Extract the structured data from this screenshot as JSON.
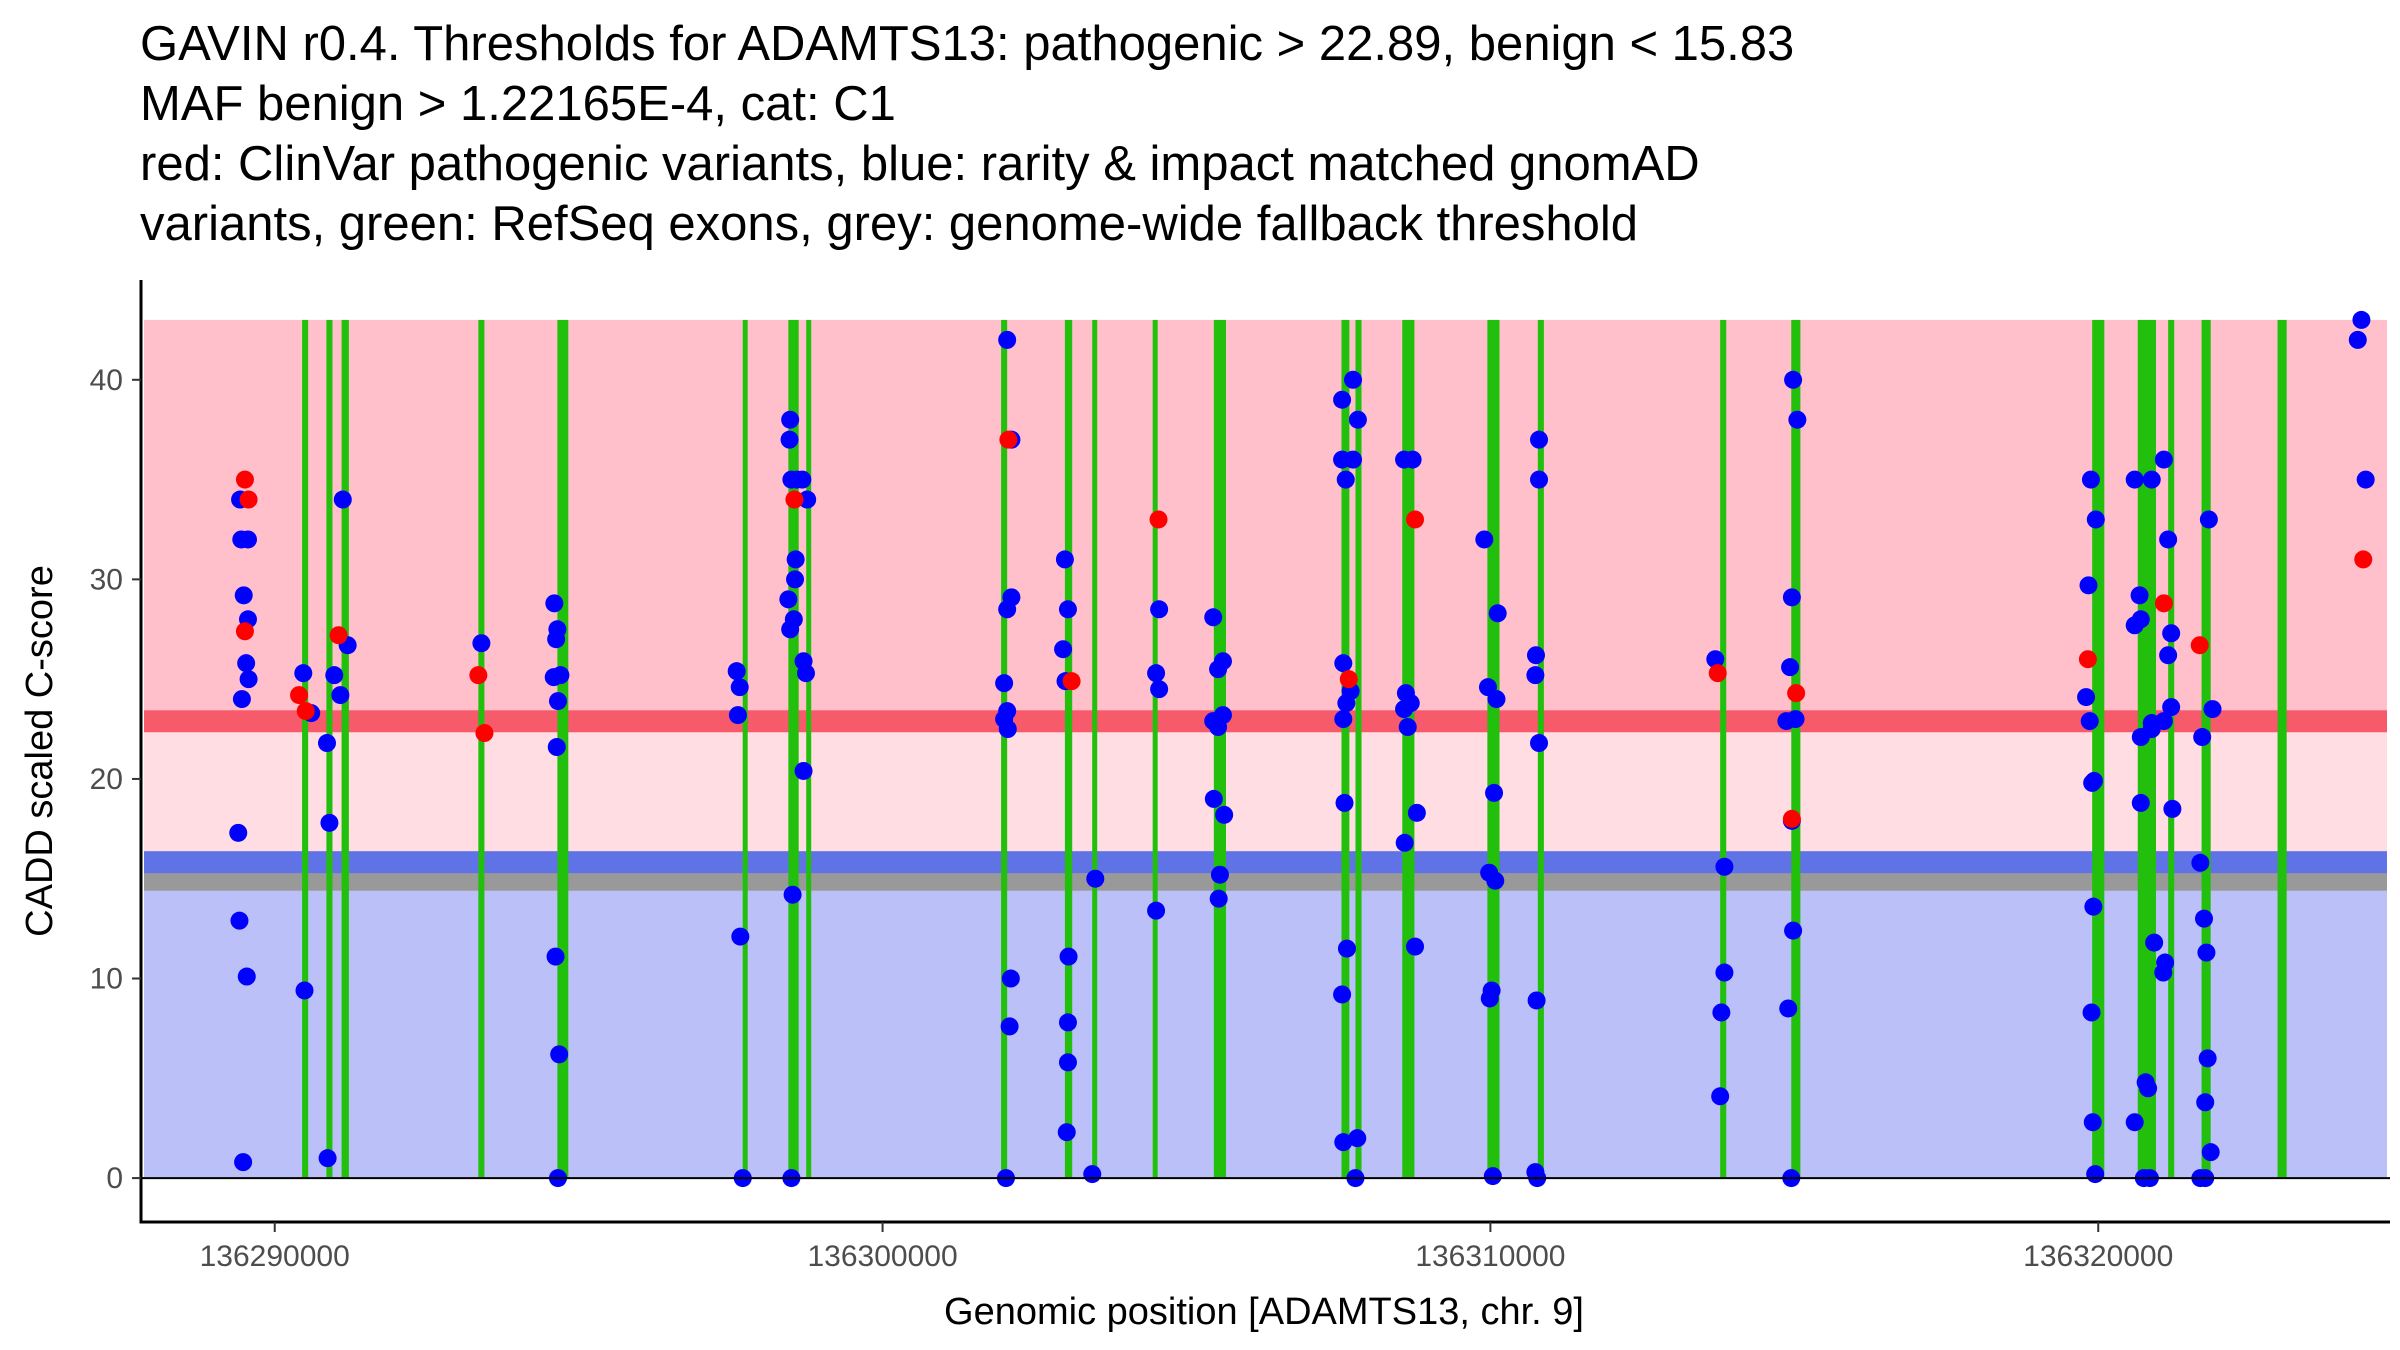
{
  "chart_data": {
    "type": "scatter",
    "title_lines": [
      "GAVIN r0.4. Thresholds for ADAMTS13: pathogenic > 22.89, benign < 15.83",
      "MAF benign > 1.22165E-4, cat: C1",
      "red: ClinVar pathogenic variants, blue: rarity & impact matched gnomAD",
      "variants, green: RefSeq exons, grey: genome-wide fallback threshold"
    ],
    "xlabel": "Genomic position [ADAMTS13, chr. 9]",
    "ylabel": "CADD scaled C-score",
    "xlim": [
      136287800,
      136324800
    ],
    "ylim": [
      -2.2,
      45
    ],
    "x_ticks": [
      136290000,
      136300000,
      136310000,
      136320000
    ],
    "x_tick_labels": [
      "136290000",
      "136300000",
      "136310000",
      "136320000"
    ],
    "y_ticks": [
      0,
      10,
      20,
      30,
      40
    ],
    "y_tick_labels": [
      "0",
      "10",
      "20",
      "30",
      "40"
    ],
    "colors": {
      "pathogenic_band": "#ffc0cb",
      "grey_zone_band": "#ffdde2",
      "benign_band": "#bbc1f8",
      "pathogenic_line": "#f75b6b",
      "benign_line": "#5f73e6",
      "fallback_line": "#999999",
      "exon": "#22c00c",
      "clinvar": "#ff0000",
      "gnomad": "#0000ff"
    },
    "thresholds": {
      "pathogenic": 22.89,
      "benign": 15.83,
      "fallback": 15.0,
      "cadd_max": 43,
      "cadd_min": 0
    },
    "exons": [
      {
        "start": 136290450,
        "end": 136290550
      },
      {
        "start": 136290850,
        "end": 136290950
      },
      {
        "start": 136291100,
        "end": 136291220
      },
      {
        "start": 136293350,
        "end": 136293450
      },
      {
        "start": 136294650,
        "end": 136294830
      },
      {
        "start": 136297700,
        "end": 136297780
      },
      {
        "start": 136298450,
        "end": 136298620
      },
      {
        "start": 136298750,
        "end": 136298820
      },
      {
        "start": 136301950,
        "end": 136302050
      },
      {
        "start": 136303000,
        "end": 136303120
      },
      {
        "start": 136303450,
        "end": 136303530
      },
      {
        "start": 136304450,
        "end": 136304520
      },
      {
        "start": 136305450,
        "end": 136305650
      },
      {
        "start": 136307550,
        "end": 136307680
      },
      {
        "start": 136307780,
        "end": 136307880
      },
      {
        "start": 136308550,
        "end": 136308750
      },
      {
        "start": 136309950,
        "end": 136310150
      },
      {
        "start": 136310780,
        "end": 136310880
      },
      {
        "start": 136313780,
        "end": 136313880
      },
      {
        "start": 136314950,
        "end": 136315100
      },
      {
        "start": 136319900,
        "end": 136320100
      },
      {
        "start": 136320650,
        "end": 136320950
      },
      {
        "start": 136321150,
        "end": 136321250
      },
      {
        "start": 136321700,
        "end": 136321850
      },
      {
        "start": 136322950,
        "end": 136323100
      }
    ],
    "series": [
      {
        "name": "gnomAD",
        "color": "#0000ff",
        "points": [
          [
            136289430,
            34
          ],
          [
            136289450,
            32
          ],
          [
            136289560,
            32
          ],
          [
            136289490,
            29.2
          ],
          [
            136289560,
            28
          ],
          [
            136289530,
            25.8
          ],
          [
            136289570,
            25
          ],
          [
            136289460,
            24
          ],
          [
            136289400,
            17.3
          ],
          [
            136289420,
            12.9
          ],
          [
            136289540,
            10.1
          ],
          [
            136289480,
            0.8
          ],
          [
            136290470,
            25.3
          ],
          [
            136290490,
            9.4
          ],
          [
            136290600,
            23.3
          ],
          [
            136290860,
            21.8
          ],
          [
            136290900,
            17.8
          ],
          [
            136290870,
            1
          ],
          [
            136290980,
            25.2
          ],
          [
            136291120,
            34
          ],
          [
            136291080,
            24.2
          ],
          [
            136291200,
            26.7
          ],
          [
            136293400,
            26.8
          ],
          [
            136294600,
            28.8
          ],
          [
            136294650,
            27.5
          ],
          [
            136294630,
            27
          ],
          [
            136294590,
            25.1
          ],
          [
            136294700,
            25.2
          ],
          [
            136294660,
            23.9
          ],
          [
            136294640,
            21.6
          ],
          [
            136294620,
            11.1
          ],
          [
            136294680,
            6.2
          ],
          [
            136294660,
            0
          ],
          [
            136297600,
            25.4
          ],
          [
            136297650,
            24.6
          ],
          [
            136297620,
            23.2
          ],
          [
            136297660,
            12.1
          ],
          [
            136297700,
            0
          ],
          [
            136298480,
            38
          ],
          [
            136298470,
            37
          ],
          [
            136298500,
            35
          ],
          [
            136298680,
            35
          ],
          [
            136298570,
            31
          ],
          [
            136298450,
            29
          ],
          [
            136298560,
            30
          ],
          [
            136298540,
            28
          ],
          [
            136298480,
            27.5
          ],
          [
            136298700,
            25.9
          ],
          [
            136298740,
            25.3
          ],
          [
            136298700,
            20.4
          ],
          [
            136298520,
            14.2
          ],
          [
            136298500,
            0
          ],
          [
            136298760,
            34
          ],
          [
            136298590,
            35
          ],
          [
            136302050,
            42
          ],
          [
            136302120,
            37
          ],
          [
            136302120,
            29.1
          ],
          [
            136302050,
            28.5
          ],
          [
            136302000,
            24.8
          ],
          [
            136302050,
            23.4
          ],
          [
            136302000,
            23
          ],
          [
            136302060,
            22.5
          ],
          [
            136302110,
            10
          ],
          [
            136302090,
            7.6
          ],
          [
            136302030,
            0
          ],
          [
            136303000,
            31
          ],
          [
            136303050,
            28.5
          ],
          [
            136302970,
            26.5
          ],
          [
            136303010,
            24.9
          ],
          [
            136303060,
            11.1
          ],
          [
            136303050,
            7.8
          ],
          [
            136303050,
            5.8
          ],
          [
            136303030,
            2.3
          ],
          [
            136303500,
            15
          ],
          [
            136303450,
            0.2
          ],
          [
            136304550,
            28.5
          ],
          [
            136304500,
            25.3
          ],
          [
            136304550,
            24.5
          ],
          [
            136304500,
            13.4
          ],
          [
            136305440,
            28.1
          ],
          [
            136305520,
            25.5
          ],
          [
            136305600,
            25.9
          ],
          [
            136305600,
            23.2
          ],
          [
            136305440,
            22.9
          ],
          [
            136305520,
            22.6
          ],
          [
            136305450,
            19
          ],
          [
            136305620,
            18.2
          ],
          [
            136305550,
            15.2
          ],
          [
            136305530,
            14
          ],
          [
            136307560,
            39
          ],
          [
            136307740,
            40
          ],
          [
            136307560,
            36
          ],
          [
            136307740,
            36
          ],
          [
            136307820,
            38
          ],
          [
            136307620,
            35
          ],
          [
            136307580,
            25.8
          ],
          [
            136307700,
            24.4
          ],
          [
            136307630,
            23.8
          ],
          [
            136307580,
            23
          ],
          [
            136307600,
            18.8
          ],
          [
            136307640,
            11.5
          ],
          [
            136307560,
            9.2
          ],
          [
            136307580,
            1.8
          ],
          [
            136307810,
            2
          ],
          [
            136307780,
            0
          ],
          [
            136308580,
            36
          ],
          [
            136308720,
            36
          ],
          [
            136308610,
            24.3
          ],
          [
            136308690,
            23.8
          ],
          [
            136308580,
            23.5
          ],
          [
            136308640,
            22.6
          ],
          [
            136308790,
            18.3
          ],
          [
            136308590,
            16.8
          ],
          [
            136308760,
            11.6
          ],
          [
            136309900,
            32
          ],
          [
            136309960,
            24.6
          ],
          [
            136310120,
            28.3
          ],
          [
            136310100,
            24
          ],
          [
            136310060,
            19.3
          ],
          [
            136309980,
            15.3
          ],
          [
            136310080,
            14.9
          ],
          [
            136310020,
            9.4
          ],
          [
            136309990,
            9
          ],
          [
            136310040,
            0.1
          ],
          [
            136310800,
            37
          ],
          [
            136310800,
            35
          ],
          [
            136310750,
            26.2
          ],
          [
            136310740,
            25.2
          ],
          [
            136310800,
            21.8
          ],
          [
            136310760,
            8.9
          ],
          [
            136310740,
            0.3
          ],
          [
            136310770,
            0
          ],
          [
            136313700,
            26
          ],
          [
            136313850,
            15.6
          ],
          [
            136313850,
            10.3
          ],
          [
            136313800,
            8.3
          ],
          [
            136313780,
            4.1
          ],
          [
            136314980,
            40
          ],
          [
            136315050,
            38
          ],
          [
            136314960,
            29.1
          ],
          [
            136314930,
            25.6
          ],
          [
            136314870,
            22.9
          ],
          [
            136315020,
            23
          ],
          [
            136314960,
            17.9
          ],
          [
            136314980,
            12.4
          ],
          [
            136314900,
            8.5
          ],
          [
            136314950,
            0
          ],
          [
            136319880,
            35
          ],
          [
            136319960,
            33
          ],
          [
            136319840,
            29.7
          ],
          [
            136319800,
            24.1
          ],
          [
            136319860,
            22.9
          ],
          [
            136319930,
            19.9
          ],
          [
            136319900,
            19.8
          ],
          [
            136319920,
            13.6
          ],
          [
            136319890,
            8.3
          ],
          [
            136319910,
            2.8
          ],
          [
            136319950,
            0.2
          ],
          [
            136320600,
            35
          ],
          [
            136320880,
            35
          ],
          [
            136320680,
            29.2
          ],
          [
            136320700,
            28
          ],
          [
            136320600,
            27.7
          ],
          [
            136320880,
            22.5
          ],
          [
            136320880,
            22.8
          ],
          [
            136320700,
            22.1
          ],
          [
            136320700,
            18.8
          ],
          [
            136320920,
            11.8
          ],
          [
            136320600,
            2.8
          ],
          [
            136320780,
            4.8
          ],
          [
            136320820,
            4.5
          ],
          [
            136320750,
            0
          ],
          [
            136320850,
            0
          ],
          [
            136321080,
            36
          ],
          [
            136321150,
            32
          ],
          [
            136321200,
            27.3
          ],
          [
            136321150,
            26.2
          ],
          [
            136321200,
            23.6
          ],
          [
            136321080,
            22.9
          ],
          [
            136321220,
            18.5
          ],
          [
            136321100,
            10.8
          ],
          [
            136321070,
            10.3
          ],
          [
            136321820,
            33
          ],
          [
            136321880,
            23.5
          ],
          [
            136321710,
            22.1
          ],
          [
            136321680,
            15.8
          ],
          [
            136321740,
            13
          ],
          [
            136321780,
            11.3
          ],
          [
            136321800,
            6
          ],
          [
            136321760,
            3.8
          ],
          [
            136321850,
            1.3
          ],
          [
            136321680,
            0
          ],
          [
            136321760,
            0
          ],
          [
            136324330,
            43
          ],
          [
            136324270,
            42
          ],
          [
            136324400,
            35
          ]
        ]
      },
      {
        "name": "ClinVar",
        "color": "#ff0000",
        "points": [
          [
            136289510,
            35
          ],
          [
            136289570,
            34
          ],
          [
            136289510,
            27.4
          ],
          [
            136290400,
            24.2
          ],
          [
            136290510,
            23.4
          ],
          [
            136291050,
            27.2
          ],
          [
            136293350,
            25.2
          ],
          [
            136293450,
            22.3
          ],
          [
            136298550,
            34
          ],
          [
            136302070,
            37
          ],
          [
            136303110,
            24.9
          ],
          [
            136304540,
            33
          ],
          [
            136307670,
            25
          ],
          [
            136308760,
            33
          ],
          [
            136313740,
            25.3
          ],
          [
            136314960,
            18
          ],
          [
            136315030,
            24.3
          ],
          [
            136319830,
            26
          ],
          [
            136321080,
            28.8
          ],
          [
            136321670,
            26.7
          ],
          [
            136324360,
            31
          ]
        ]
      }
    ]
  }
}
